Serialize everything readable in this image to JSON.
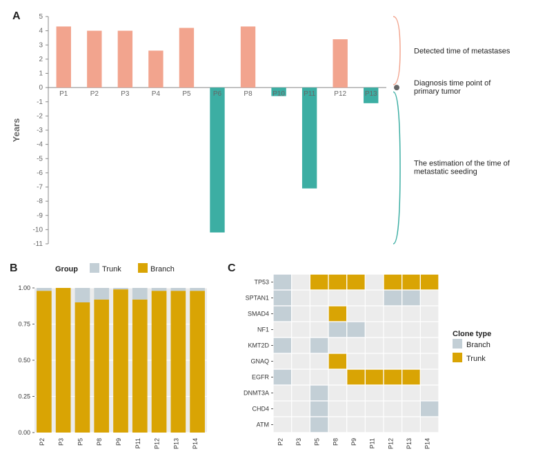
{
  "panelA": {
    "type": "bar-diverging",
    "label": "A",
    "ylabel": "Years",
    "categories": [
      "P1",
      "P2",
      "P3",
      "P4",
      "P5",
      "P6",
      "P8",
      "P10",
      "P11",
      "P12",
      "P13"
    ],
    "pos_values": [
      4.3,
      4.0,
      4.0,
      2.6,
      4.2,
      0,
      4.3,
      0,
      0,
      3.4,
      0
    ],
    "neg_values": [
      0,
      0,
      0,
      0,
      0,
      -10.2,
      0,
      -0.6,
      -7.1,
      0,
      -1.1
    ],
    "pos_color": "#f2a48e",
    "neg_color": "#3caea3",
    "ylim": [
      -11,
      5
    ],
    "ytick_step": 1,
    "axis_color": "#888888",
    "label_color": "#666666",
    "grid_color": "#eeeeee",
    "bar_width": 0.48,
    "label_fontsize": 11,
    "tick_fontsize": 10,
    "annotations": {
      "top": "Detected time of metastases",
      "zero": "Diagnosis time point of\nprimary tumor",
      "bottom": "The estimation of the time of\nmetastatic seeding"
    },
    "bracket_color_top": "#f2a48e",
    "bracket_color_bottom": "#3caea3",
    "dot_color": "#666666"
  },
  "panelB": {
    "type": "stacked-bar",
    "label": "B",
    "legend_title": "Group",
    "categories": [
      "P2",
      "P3",
      "P5",
      "P8",
      "P9",
      "P11",
      "P12",
      "P13",
      "P14"
    ],
    "series": [
      {
        "name": "Trunk",
        "color": "#c3cfd6"
      },
      {
        "name": "Branch",
        "color": "#d9a404"
      }
    ],
    "branch_values": [
      0.98,
      1.0,
      0.9,
      0.92,
      0.99,
      0.92,
      0.98,
      0.98,
      0.98
    ],
    "ylim": [
      0,
      1
    ],
    "yticks": [
      0.0,
      0.25,
      0.5,
      0.75,
      1.0
    ],
    "bg_color": "#ececec",
    "grid_color": "#ffffff",
    "bar_width": 0.78,
    "tick_fontsize": 9,
    "legend_fontsize": 11
  },
  "panelC": {
    "type": "heatmap",
    "label": "C",
    "legend_title": "Clone type",
    "rows": [
      "TP53",
      "SPTAN1",
      "SMAD4",
      "NF1",
      "KMT2D",
      "GNAQ",
      "EGFR",
      "DNMT3A",
      "CHD4",
      "ATM"
    ],
    "cols": [
      "P2",
      "P3",
      "P5",
      "P8",
      "P9",
      "P11",
      "P12",
      "P13",
      "P14"
    ],
    "colors": {
      "Branch": "#c3cfd6",
      "Trunk": "#d9a404",
      "empty": "#ececec"
    },
    "cells": [
      [
        "Branch",
        "",
        "Trunk",
        "Trunk",
        "Trunk",
        "",
        "Trunk",
        "Trunk",
        "Trunk"
      ],
      [
        "Branch",
        "",
        "",
        "",
        "",
        "",
        "Branch",
        "Branch",
        ""
      ],
      [
        "Branch",
        "",
        "",
        "Trunk",
        "",
        "",
        "",
        "",
        ""
      ],
      [
        "",
        "",
        "",
        "Branch",
        "Branch",
        "",
        "",
        "",
        ""
      ],
      [
        "Branch",
        "",
        "Branch",
        "",
        "",
        "",
        "",
        "",
        ""
      ],
      [
        "",
        "",
        "",
        "Trunk",
        "",
        "",
        "",
        "",
        ""
      ],
      [
        "Branch",
        "",
        "",
        "",
        "Trunk",
        "Trunk",
        "Trunk",
        "Trunk",
        ""
      ],
      [
        "",
        "",
        "Branch",
        "",
        "",
        "",
        "",
        "",
        ""
      ],
      [
        "",
        "",
        "Branch",
        "",
        "",
        "",
        "",
        "",
        "Branch"
      ],
      [
        "",
        "",
        "Branch",
        "",
        "",
        "",
        "",
        "",
        ""
      ]
    ],
    "gap_color": "#ffffff",
    "tick_fontsize": 9,
    "legend_fontsize": 11
  }
}
